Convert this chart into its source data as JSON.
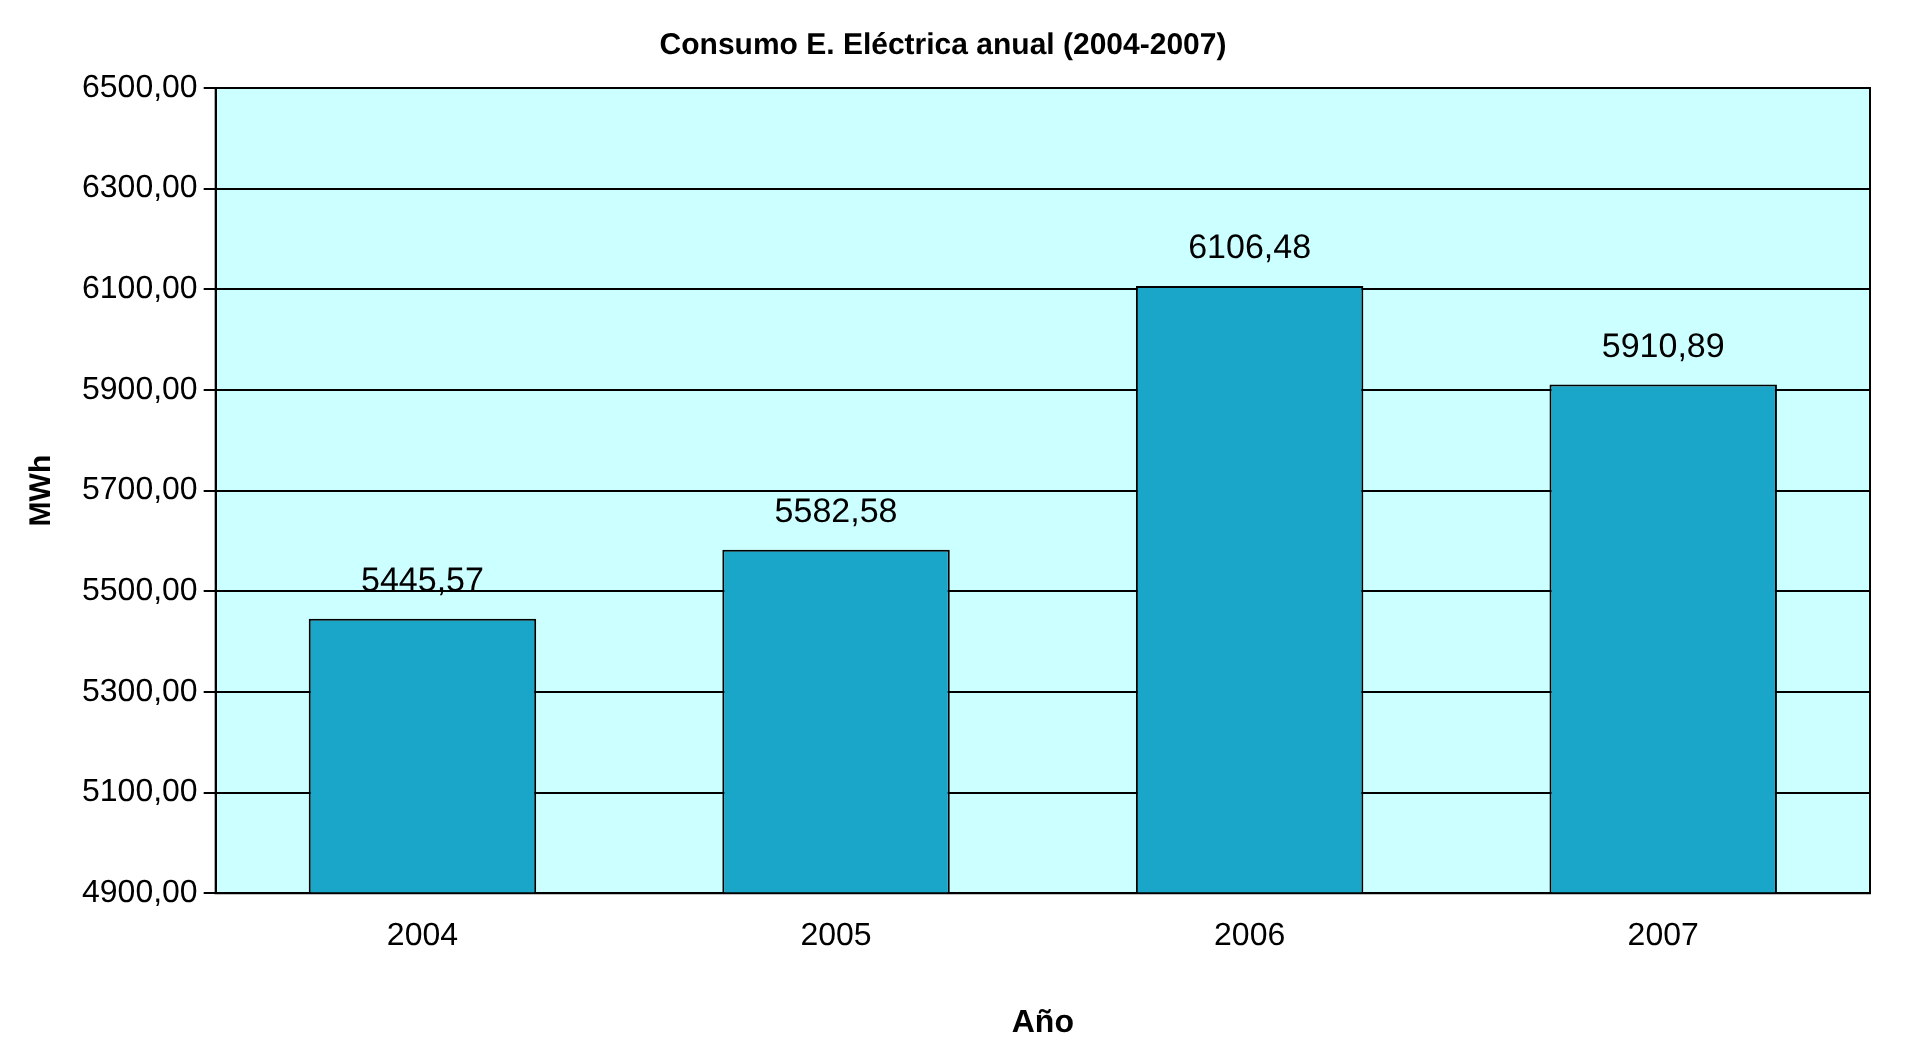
{
  "chart_data": {
    "type": "bar",
    "title": "Consumo E. Eléctrica anual (2004-2007)",
    "xlabel": "Año",
    "ylabel": "MWh",
    "categories": [
      "2004",
      "2005",
      "2006",
      "2007"
    ],
    "values": [
      5445.57,
      5582.58,
      6106.48,
      5910.89
    ],
    "value_labels": [
      "5445,57",
      "5582,58",
      "6106,48",
      "5910,89"
    ],
    "color": "#1aa6c8",
    "ylim": [
      4900,
      6500
    ],
    "yticks": [
      {
        "value": 4900,
        "label": "4900,00"
      },
      {
        "value": 5100,
        "label": "5100,00"
      },
      {
        "value": 5300,
        "label": "5300,00"
      },
      {
        "value": 5500,
        "label": "5500,00"
      },
      {
        "value": 5700,
        "label": "5700,00"
      },
      {
        "value": 5900,
        "label": "5900,00"
      },
      {
        "value": 6100,
        "label": "6100,00"
      },
      {
        "value": 6300,
        "label": "6300,00"
      },
      {
        "value": 6500,
        "label": "6500,00"
      }
    ],
    "grid": "y",
    "legend": false
  }
}
